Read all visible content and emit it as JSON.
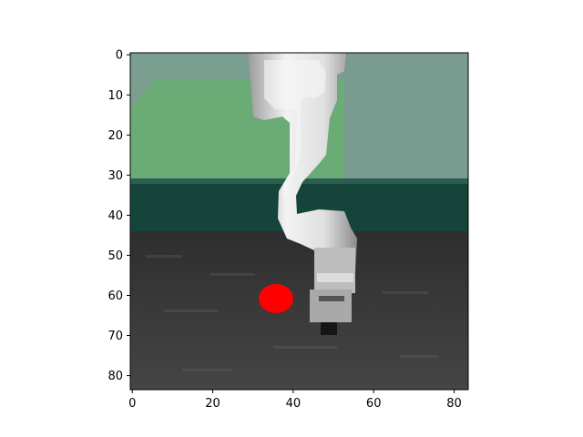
{
  "figure": {
    "image_description_icon": "robot-arm-scene-icon",
    "x_axis": {
      "ticks": [
        0,
        20,
        40,
        60,
        80
      ],
      "range": [
        -0.5,
        83.5
      ]
    },
    "y_axis": {
      "ticks": [
        0,
        10,
        20,
        30,
        40,
        50,
        60,
        70,
        80
      ],
      "range": [
        83.5,
        -0.5
      ],
      "inverted": true
    },
    "grid": false,
    "scene": {
      "target_color": "#ff0000",
      "wall_color": "#7a9e8f",
      "table_color": "#6aab76",
      "table_edge_color": "#15453a",
      "floor_color": "#3c3c3c",
      "arm_color": "#e8e8e8"
    },
    "target": {
      "x": 36,
      "y": 61
    }
  }
}
